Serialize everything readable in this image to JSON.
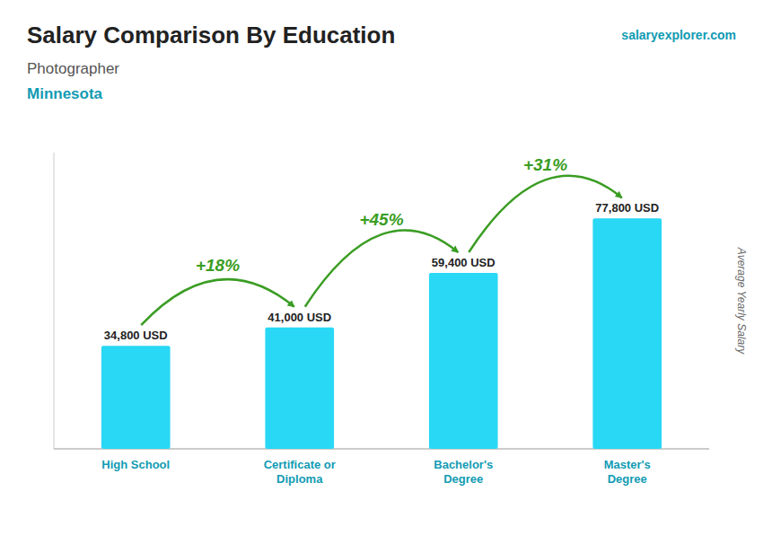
{
  "chart_data": {
    "type": "bar",
    "title": "Salary Comparison By Education",
    "subtitle": "Photographer",
    "location": "Minnesota",
    "source": "salaryexplorer.com",
    "ylabel": "Average Yearly Salary",
    "categories": [
      "High School",
      "Certificate or\nDiploma",
      "Bachelor's\nDegree",
      "Master's\nDegree"
    ],
    "values": [
      34800,
      41000,
      59400,
      77800
    ],
    "value_labels": [
      "34,800 USD",
      "41,000 USD",
      "59,400 USD",
      "77,800 USD"
    ],
    "annotations": [
      "+18%",
      "+45%",
      "+31%"
    ],
    "color": "#29d8f5",
    "ylim": [
      0,
      100000
    ],
    "data_labels": true,
    "tick_labels": "x",
    "grid": false
  }
}
